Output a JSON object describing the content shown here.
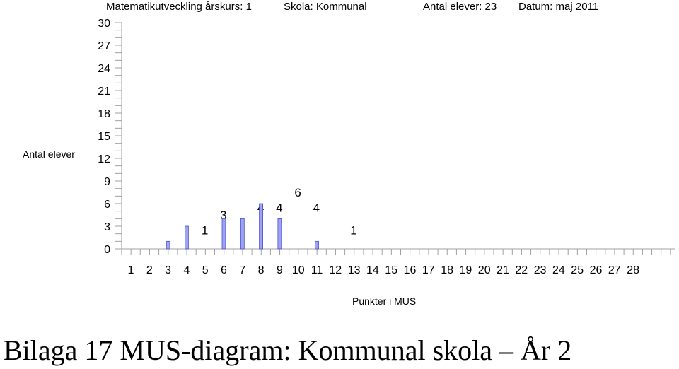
{
  "header": {
    "course": "Matematikutveckling årskurs: 1",
    "school": "Skola: Kommunal",
    "students": "Antal elever: 23",
    "date": "Datum: maj 2011"
  },
  "caption": "Bilaga 17 MUS-diagram: Kommunal skola – År 2",
  "chart_data": {
    "type": "bar",
    "title": "",
    "xlabel": "Punkter i MUS",
    "ylabel": "Antal elever",
    "ylim": [
      0,
      30
    ],
    "yticks": [
      0,
      3,
      6,
      9,
      12,
      15,
      18,
      21,
      24,
      27,
      30
    ],
    "categories": [
      1,
      2,
      3,
      4,
      5,
      6,
      7,
      8,
      9,
      10,
      11,
      12,
      13,
      14,
      15,
      16,
      17,
      18,
      19,
      20,
      21,
      22,
      23,
      24,
      25,
      26,
      27,
      28
    ],
    "values": [
      0,
      0,
      1,
      3,
      0,
      4,
      4,
      6,
      4,
      0,
      1,
      0,
      0,
      0,
      0,
      0,
      0,
      0,
      0,
      0,
      0,
      0,
      0,
      0,
      0,
      0,
      0,
      0
    ],
    "bar_color": "#9da3f0",
    "bar_stroke": "#4a4fd0",
    "grid": false,
    "legend": "none"
  }
}
